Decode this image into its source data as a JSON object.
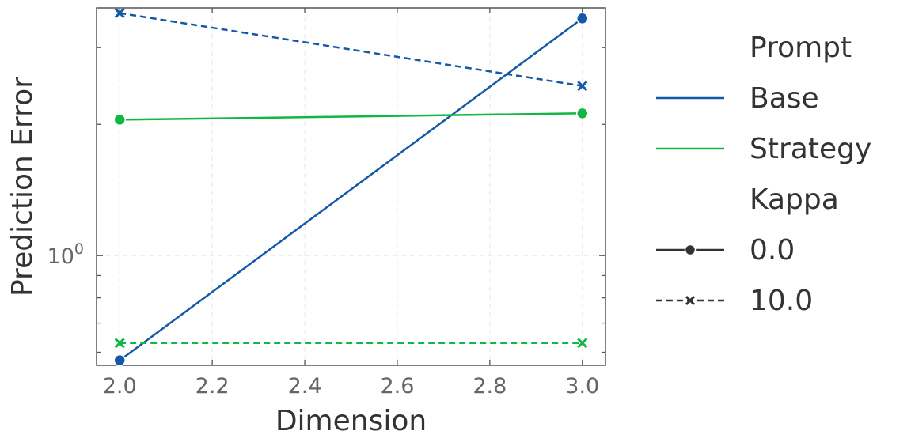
{
  "chart_data": {
    "type": "line",
    "title": "",
    "xlabel": "Dimension",
    "ylabel": "Prediction Error",
    "x_ticks": [
      "2.0",
      "2.2",
      "2.4",
      "2.6",
      "2.8",
      "3.0"
    ],
    "x_tick_values": [
      2.0,
      2.2,
      2.4,
      2.6,
      2.8,
      3.0
    ],
    "xlim": [
      1.95,
      3.05
    ],
    "y_scale": "log",
    "ylim": [
      0.56,
      3.7
    ],
    "y_major_tick_values": [
      1.0
    ],
    "y_major_tick_labels": [
      {
        "base": "10",
        "exp": "0"
      }
    ],
    "y_minor_tick_values": [
      0.6,
      0.7,
      0.8,
      0.9,
      2,
      3
    ],
    "grid": true,
    "legend_position": "right outside",
    "series": [
      {
        "prompt": "Base",
        "kappa": "0.0",
        "color": "#1558a6",
        "linestyle": "solid",
        "marker": "circle",
        "x": [
          2.0,
          3.0
        ],
        "y": [
          0.575,
          3.5
        ]
      },
      {
        "prompt": "Base",
        "kappa": "10.0",
        "color": "#1558a6",
        "linestyle": "dashed",
        "marker": "x",
        "x": [
          2.0,
          3.0
        ],
        "y": [
          3.6,
          2.45
        ]
      },
      {
        "prompt": "Strategy",
        "kappa": "0.0",
        "color": "#0fb843",
        "linestyle": "solid",
        "marker": "circle",
        "x": [
          2.0,
          3.0
        ],
        "y": [
          2.05,
          2.12
        ]
      },
      {
        "prompt": "Strategy",
        "kappa": "10.0",
        "color": "#0fb843",
        "linestyle": "dashed",
        "marker": "x",
        "x": [
          2.0,
          3.0
        ],
        "y": [
          0.63,
          0.63
        ]
      }
    ]
  },
  "legend": {
    "hue_title": "Prompt",
    "hue_entries": [
      {
        "label": "Base",
        "color": "#1558a6"
      },
      {
        "label": "Strategy",
        "color": "#0fb843"
      }
    ],
    "style_title": "Kappa",
    "style_entries": [
      {
        "label": "0.0",
        "linestyle": "solid",
        "marker": "circle"
      },
      {
        "label": "10.0",
        "linestyle": "dashed",
        "marker": "x"
      }
    ]
  }
}
